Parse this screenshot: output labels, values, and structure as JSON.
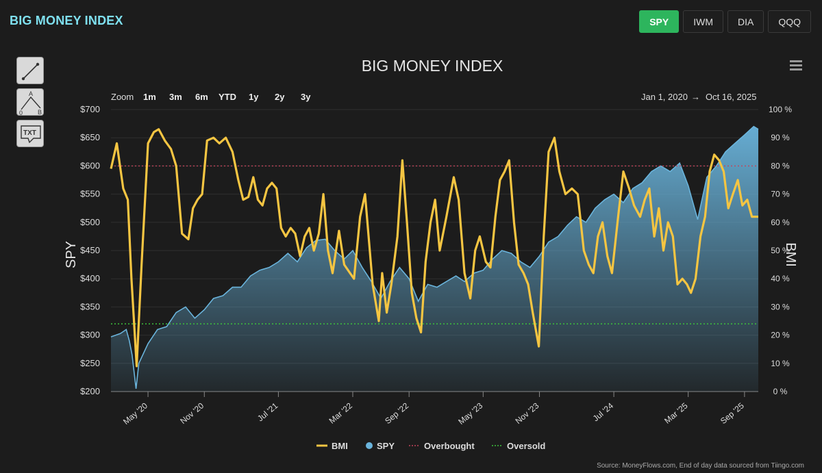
{
  "brand": "BIG MONEY INDEX",
  "tickers": [
    {
      "label": "SPY",
      "active": true
    },
    {
      "label": "IWM",
      "active": false
    },
    {
      "label": "DIA",
      "active": false
    },
    {
      "label": "QQQ",
      "active": false
    }
  ],
  "tools": {
    "line_icon": "line-tool-icon",
    "fib_labels": {
      "a": "A",
      "b": "B",
      "zero": "0"
    },
    "text_label": "TXT"
  },
  "zoom": {
    "label": "Zoom",
    "options": [
      "1m",
      "3m",
      "6m",
      "YTD",
      "1y",
      "2y",
      "3y"
    ]
  },
  "range": {
    "from": "Jan 1, 2020",
    "arrow": "→",
    "to": "Oct 16, 2025"
  },
  "source": "Source: MoneyFlows.com, End of day data sourced from Tiingo.com",
  "colors": {
    "bmi": "#f5c542",
    "spy": "#6ab4dc",
    "overbought": "#c2435a",
    "oversold": "#3cc13c"
  },
  "chart_data": {
    "type": "line",
    "title": "BIG MONEY INDEX",
    "ylabel_left": "SPY",
    "ylabel_right": "BMI",
    "ylim_left": [
      200,
      700
    ],
    "ylim_right": [
      0,
      100
    ],
    "xlim": [
      "2020-01-01",
      "2025-10-16"
    ],
    "left_ticks": [
      "$200",
      "$250",
      "$300",
      "$350",
      "$400",
      "$450",
      "$500",
      "$550",
      "$600",
      "$650",
      "$700"
    ],
    "right_ticks": [
      "0 %",
      "10 %",
      "20 %",
      "30 %",
      "40 %",
      "50 %",
      "60 %",
      "70 %",
      "80 %",
      "90 %",
      "100 %"
    ],
    "x_ticks": [
      {
        "label": "May '20",
        "date": "2020-05-01"
      },
      {
        "label": "Nov '20",
        "date": "2020-11-01"
      },
      {
        "label": "Jul '21",
        "date": "2021-07-01"
      },
      {
        "label": "Mar '22",
        "date": "2022-03-01"
      },
      {
        "label": "Sep '22",
        "date": "2022-09-01"
      },
      {
        "label": "May '23",
        "date": "2023-05-01"
      },
      {
        "label": "Nov '23",
        "date": "2023-11-01"
      },
      {
        "label": "Jul '24",
        "date": "2024-07-01"
      },
      {
        "label": "Mar '25",
        "date": "2025-03-01"
      },
      {
        "label": "Sep '25",
        "date": "2025-09-01"
      }
    ],
    "overbought": 80,
    "oversold": 24,
    "legend": [
      "BMI",
      "SPY",
      "Overbought",
      "Oversold"
    ],
    "series": [
      {
        "name": "SPY",
        "axis": "left",
        "type": "area",
        "points": [
          [
            "2020-01-01",
            297
          ],
          [
            "2020-02-01",
            303
          ],
          [
            "2020-02-20",
            310
          ],
          [
            "2020-03-01",
            290
          ],
          [
            "2020-03-10",
            265
          ],
          [
            "2020-03-23",
            205
          ],
          [
            "2020-04-01",
            250
          ],
          [
            "2020-05-01",
            285
          ],
          [
            "2020-06-01",
            310
          ],
          [
            "2020-07-01",
            315
          ],
          [
            "2020-08-01",
            340
          ],
          [
            "2020-09-01",
            350
          ],
          [
            "2020-10-01",
            330
          ],
          [
            "2020-11-01",
            345
          ],
          [
            "2020-12-01",
            365
          ],
          [
            "2021-01-01",
            370
          ],
          [
            "2021-02-01",
            385
          ],
          [
            "2021-03-01",
            385
          ],
          [
            "2021-04-01",
            405
          ],
          [
            "2021-05-01",
            415
          ],
          [
            "2021-06-01",
            420
          ],
          [
            "2021-07-01",
            430
          ],
          [
            "2021-08-01",
            445
          ],
          [
            "2021-09-01",
            430
          ],
          [
            "2021-10-01",
            455
          ],
          [
            "2021-11-01",
            468
          ],
          [
            "2021-12-01",
            470
          ],
          [
            "2022-01-01",
            450
          ],
          [
            "2022-02-01",
            435
          ],
          [
            "2022-03-01",
            450
          ],
          [
            "2022-04-01",
            420
          ],
          [
            "2022-05-01",
            395
          ],
          [
            "2022-06-01",
            365
          ],
          [
            "2022-07-01",
            395
          ],
          [
            "2022-08-01",
            420
          ],
          [
            "2022-09-01",
            400
          ],
          [
            "2022-10-01",
            360
          ],
          [
            "2022-11-01",
            390
          ],
          [
            "2022-12-01",
            385
          ],
          [
            "2023-01-01",
            395
          ],
          [
            "2023-02-01",
            405
          ],
          [
            "2023-03-01",
            395
          ],
          [
            "2023-04-01",
            410
          ],
          [
            "2023-05-01",
            415
          ],
          [
            "2023-06-01",
            435
          ],
          [
            "2023-07-01",
            450
          ],
          [
            "2023-08-01",
            445
          ],
          [
            "2023-09-01",
            430
          ],
          [
            "2023-10-01",
            420
          ],
          [
            "2023-11-01",
            440
          ],
          [
            "2023-12-01",
            465
          ],
          [
            "2024-01-01",
            475
          ],
          [
            "2024-02-01",
            495
          ],
          [
            "2024-03-01",
            510
          ],
          [
            "2024-04-01",
            500
          ],
          [
            "2024-05-01",
            525
          ],
          [
            "2024-06-01",
            540
          ],
          [
            "2024-07-01",
            550
          ],
          [
            "2024-08-01",
            535
          ],
          [
            "2024-09-01",
            560
          ],
          [
            "2024-10-01",
            570
          ],
          [
            "2024-11-01",
            590
          ],
          [
            "2024-12-01",
            600
          ],
          [
            "2025-01-01",
            590
          ],
          [
            "2025-02-01",
            605
          ],
          [
            "2025-03-01",
            565
          ],
          [
            "2025-04-01",
            505
          ],
          [
            "2025-05-01",
            580
          ],
          [
            "2025-06-01",
            600
          ],
          [
            "2025-07-01",
            625
          ],
          [
            "2025-08-01",
            640
          ],
          [
            "2025-09-01",
            655
          ],
          [
            "2025-10-01",
            670
          ],
          [
            "2025-10-16",
            665
          ]
        ]
      },
      {
        "name": "BMI",
        "axis": "right",
        "type": "line",
        "points": [
          [
            "2020-01-01",
            79
          ],
          [
            "2020-01-20",
            88
          ],
          [
            "2020-02-10",
            72
          ],
          [
            "2020-02-25",
            68
          ],
          [
            "2020-03-08",
            40
          ],
          [
            "2020-03-25",
            9
          ],
          [
            "2020-04-10",
            45
          ],
          [
            "2020-05-01",
            88
          ],
          [
            "2020-05-20",
            92
          ],
          [
            "2020-06-05",
            93
          ],
          [
            "2020-06-25",
            89
          ],
          [
            "2020-07-15",
            86
          ],
          [
            "2020-08-01",
            80
          ],
          [
            "2020-08-20",
            56
          ],
          [
            "2020-09-10",
            54
          ],
          [
            "2020-09-25",
            65
          ],
          [
            "2020-10-10",
            68
          ],
          [
            "2020-10-25",
            70
          ],
          [
            "2020-11-10",
            89
          ],
          [
            "2020-12-01",
            90
          ],
          [
            "2020-12-20",
            88
          ],
          [
            "2021-01-10",
            90
          ],
          [
            "2021-02-01",
            85
          ],
          [
            "2021-02-20",
            75
          ],
          [
            "2021-03-08",
            68
          ],
          [
            "2021-03-25",
            69
          ],
          [
            "2021-04-10",
            76
          ],
          [
            "2021-04-25",
            68
          ],
          [
            "2021-05-10",
            66
          ],
          [
            "2021-05-25",
            72
          ],
          [
            "2021-06-10",
            74
          ],
          [
            "2021-06-25",
            72
          ],
          [
            "2021-07-10",
            58
          ],
          [
            "2021-07-25",
            55
          ],
          [
            "2021-08-10",
            58
          ],
          [
            "2021-08-25",
            56
          ],
          [
            "2021-09-10",
            48
          ],
          [
            "2021-09-25",
            55
          ],
          [
            "2021-10-10",
            58
          ],
          [
            "2021-10-25",
            50
          ],
          [
            "2021-11-10",
            56
          ],
          [
            "2021-11-25",
            70
          ],
          [
            "2021-12-10",
            50
          ],
          [
            "2021-12-25",
            42
          ],
          [
            "2022-01-15",
            57
          ],
          [
            "2022-02-01",
            45
          ],
          [
            "2022-02-20",
            42
          ],
          [
            "2022-03-05",
            40
          ],
          [
            "2022-03-25",
            62
          ],
          [
            "2022-04-10",
            70
          ],
          [
            "2022-05-05",
            38
          ],
          [
            "2022-05-25",
            25
          ],
          [
            "2022-06-05",
            42
          ],
          [
            "2022-06-20",
            28
          ],
          [
            "2022-07-05",
            38
          ],
          [
            "2022-07-25",
            55
          ],
          [
            "2022-08-10",
            82
          ],
          [
            "2022-08-25",
            60
          ],
          [
            "2022-09-10",
            35
          ],
          [
            "2022-09-25",
            26
          ],
          [
            "2022-10-10",
            21
          ],
          [
            "2022-10-25",
            46
          ],
          [
            "2022-11-10",
            60
          ],
          [
            "2022-11-25",
            68
          ],
          [
            "2022-12-10",
            50
          ],
          [
            "2023-01-01",
            62
          ],
          [
            "2023-01-25",
            76
          ],
          [
            "2023-02-10",
            68
          ],
          [
            "2023-03-01",
            42
          ],
          [
            "2023-03-20",
            33
          ],
          [
            "2023-04-05",
            50
          ],
          [
            "2023-04-20",
            55
          ],
          [
            "2023-05-10",
            46
          ],
          [
            "2023-05-25",
            44
          ],
          [
            "2023-06-10",
            62
          ],
          [
            "2023-06-25",
            75
          ],
          [
            "2023-07-10",
            78
          ],
          [
            "2023-07-25",
            82
          ],
          [
            "2023-08-10",
            60
          ],
          [
            "2023-08-25",
            45
          ],
          [
            "2023-09-10",
            42
          ],
          [
            "2023-09-25",
            38
          ],
          [
            "2023-10-10",
            28
          ],
          [
            "2023-10-30",
            16
          ],
          [
            "2023-11-15",
            55
          ],
          [
            "2023-12-01",
            85
          ],
          [
            "2023-12-20",
            90
          ],
          [
            "2024-01-05",
            78
          ],
          [
            "2024-01-25",
            70
          ],
          [
            "2024-02-15",
            72
          ],
          [
            "2024-03-05",
            70
          ],
          [
            "2024-03-25",
            50
          ],
          [
            "2024-04-10",
            45
          ],
          [
            "2024-04-25",
            42
          ],
          [
            "2024-05-10",
            55
          ],
          [
            "2024-05-25",
            60
          ],
          [
            "2024-06-10",
            48
          ],
          [
            "2024-06-25",
            42
          ],
          [
            "2024-07-15",
            62
          ],
          [
            "2024-08-01",
            78
          ],
          [
            "2024-08-20",
            72
          ],
          [
            "2024-09-05",
            66
          ],
          [
            "2024-09-25",
            62
          ],
          [
            "2024-10-10",
            68
          ],
          [
            "2024-10-25",
            72
          ],
          [
            "2024-11-10",
            55
          ],
          [
            "2024-11-25",
            65
          ],
          [
            "2024-12-10",
            50
          ],
          [
            "2024-12-25",
            60
          ],
          [
            "2025-01-10",
            55
          ],
          [
            "2025-01-25",
            38
          ],
          [
            "2025-02-10",
            40
          ],
          [
            "2025-02-25",
            38
          ],
          [
            "2025-03-10",
            35
          ],
          [
            "2025-03-25",
            40
          ],
          [
            "2025-04-10",
            55
          ],
          [
            "2025-04-25",
            62
          ],
          [
            "2025-05-10",
            78
          ],
          [
            "2025-05-25",
            84
          ],
          [
            "2025-06-10",
            82
          ],
          [
            "2025-06-25",
            78
          ],
          [
            "2025-07-10",
            65
          ],
          [
            "2025-07-25",
            70
          ],
          [
            "2025-08-10",
            75
          ],
          [
            "2025-08-25",
            66
          ],
          [
            "2025-09-10",
            68
          ],
          [
            "2025-09-25",
            62
          ],
          [
            "2025-10-16",
            62
          ]
        ]
      }
    ]
  }
}
